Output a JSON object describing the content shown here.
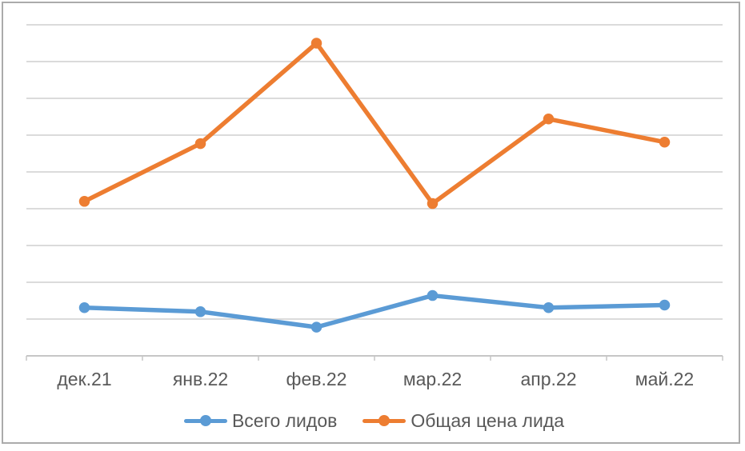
{
  "chart_data": {
    "type": "line",
    "title": "",
    "xlabel": "",
    "ylabel": "",
    "categories": [
      "дек.21",
      "янв.22",
      "фев.22",
      "мар.22",
      "апр.22",
      "май.22"
    ],
    "series": [
      {
        "name": "Всего лидов",
        "color": "#5B9BD5",
        "values": [
          1.31,
          1.2,
          0.78,
          1.64,
          1.31,
          1.38
        ]
      },
      {
        "name": "Общая цена лида",
        "color": "#ED7D31",
        "values": [
          4.2,
          5.77,
          8.5,
          4.14,
          6.44,
          5.81
        ]
      }
    ],
    "ylim": [
      0,
      9
    ],
    "y_gridline_step": 1,
    "y_tick_labels_visible": false,
    "grid": "horizontal",
    "legend_position": "bottom",
    "note": "No y-axis tick labels are shown in the chart; series values are measured in gridline units above the x-axis (9 equal unlabeled intervals)."
  },
  "style_colors": {
    "gridline": "#dbdbdb",
    "axis_line": "#c6c6c6",
    "label_text": "#595959",
    "frame_border": "#ababab"
  }
}
